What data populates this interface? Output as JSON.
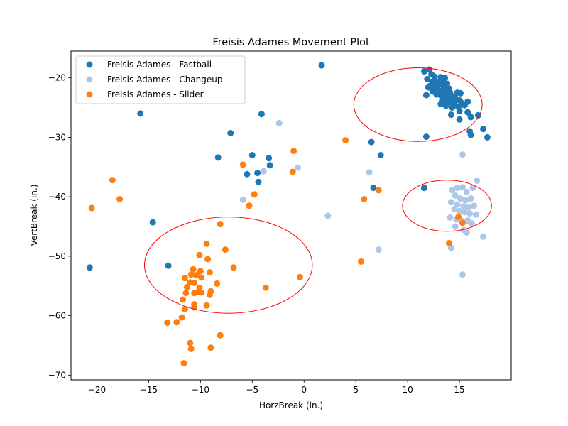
{
  "chart_data": {
    "type": "scatter",
    "title": "Freisis Adames Movement Plot",
    "xlabel": "HorzBreak (in.)",
    "ylabel": "VertBreak (in.)",
    "xlim": [
      -22.5,
      20
    ],
    "ylim": [
      -70.8,
      -15.5
    ],
    "xticks": [
      -20,
      -15,
      -10,
      -5,
      0,
      5,
      10,
      15
    ],
    "yticks": [
      -70,
      -60,
      -50,
      -40,
      -30,
      -20
    ],
    "legend_position": "top-left",
    "grid": false,
    "series": [
      {
        "name": "Freisis Adames - Fastball",
        "color": "#1f77b4",
        "points": [
          [
            1.7,
            -17.9
          ],
          [
            12.1,
            -18.6
          ],
          [
            11.6,
            -18.9
          ],
          [
            12.3,
            -19.4
          ],
          [
            12.6,
            -19.8
          ],
          [
            13.2,
            -19.9
          ],
          [
            13.6,
            -20.0
          ],
          [
            11.9,
            -20.2
          ],
          [
            12.4,
            -20.6
          ],
          [
            12.9,
            -20.7
          ],
          [
            13.4,
            -20.8
          ],
          [
            13.8,
            -21.0
          ],
          [
            12.2,
            -21.3
          ],
          [
            12.7,
            -21.5
          ],
          [
            13.0,
            -21.2
          ],
          [
            13.5,
            -21.6
          ],
          [
            14.0,
            -21.8
          ],
          [
            12.5,
            -22.0
          ],
          [
            13.1,
            -22.2
          ],
          [
            13.6,
            -22.4
          ],
          [
            14.1,
            -22.5
          ],
          [
            12.8,
            -22.8
          ],
          [
            13.3,
            -23.0
          ],
          [
            13.9,
            -23.2
          ],
          [
            14.4,
            -23.2
          ],
          [
            12.4,
            -22.3
          ],
          [
            13.7,
            -23.5
          ],
          [
            14.2,
            -23.7
          ],
          [
            14.8,
            -22.5
          ],
          [
            15.1,
            -22.6
          ],
          [
            14.6,
            -23.4
          ],
          [
            15.0,
            -23.8
          ],
          [
            13.4,
            -23.9
          ],
          [
            14.0,
            -24.1
          ],
          [
            14.5,
            -24.3
          ],
          [
            15.2,
            -24.2
          ],
          [
            13.7,
            -24.7
          ],
          [
            14.3,
            -25.0
          ],
          [
            14.9,
            -24.9
          ],
          [
            15.5,
            -24.6
          ],
          [
            15.8,
            -24.0
          ],
          [
            13.2,
            -24.4
          ],
          [
            12.0,
            -21.6
          ],
          [
            11.8,
            -22.9
          ],
          [
            15.0,
            -25.6
          ],
          [
            15.8,
            -25.8
          ],
          [
            14.2,
            -26.2
          ],
          [
            16.1,
            -26.6
          ],
          [
            16.8,
            -26.3
          ],
          [
            15.0,
            -27.0
          ],
          [
            16.0,
            -29.0
          ],
          [
            16.1,
            -29.6
          ],
          [
            17.3,
            -28.6
          ],
          [
            17.7,
            -30.0
          ],
          [
            11.8,
            -29.9
          ],
          [
            -15.8,
            -26.0
          ],
          [
            -4.1,
            -26.1
          ],
          [
            -7.1,
            -29.3
          ],
          [
            -8.3,
            -33.4
          ],
          [
            -5.0,
            -33.0
          ],
          [
            -3.4,
            -33.5
          ],
          [
            -3.3,
            -34.7
          ],
          [
            -5.5,
            -36.2
          ],
          [
            -4.5,
            -36.0
          ],
          [
            -4.4,
            -37.5
          ],
          [
            6.5,
            -30.8
          ],
          [
            7.4,
            -33.0
          ],
          [
            6.7,
            -38.5
          ],
          [
            11.6,
            -38.5
          ],
          [
            -14.6,
            -44.3
          ],
          [
            -13.1,
            -51.6
          ],
          [
            -20.7,
            -51.9
          ]
        ]
      },
      {
        "name": "Freisis Adames - Changeup",
        "color": "#aec7e8",
        "points": [
          [
            -2.4,
            -27.6
          ],
          [
            -3.9,
            -35.7
          ],
          [
            -0.6,
            -35.1
          ],
          [
            -5.9,
            -40.5
          ],
          [
            2.3,
            -43.2
          ],
          [
            6.3,
            -35.9
          ],
          [
            7.2,
            -48.9
          ],
          [
            15.3,
            -32.9
          ],
          [
            16.7,
            -37.3
          ],
          [
            16.3,
            -38.5
          ],
          [
            14.3,
            -38.9
          ],
          [
            14.8,
            -38.5
          ],
          [
            15.3,
            -38.4
          ],
          [
            15.7,
            -39.2
          ],
          [
            14.6,
            -39.8
          ],
          [
            15.1,
            -40.3
          ],
          [
            15.6,
            -40.6
          ],
          [
            16.1,
            -40.3
          ],
          [
            14.2,
            -40.9
          ],
          [
            14.8,
            -41.3
          ],
          [
            15.4,
            -41.6
          ],
          [
            15.9,
            -41.8
          ],
          [
            16.4,
            -41.5
          ],
          [
            14.5,
            -42.1
          ],
          [
            15.0,
            -42.4
          ],
          [
            15.5,
            -42.6
          ],
          [
            16.0,
            -42.8
          ],
          [
            16.6,
            -43.0
          ],
          [
            14.1,
            -43.5
          ],
          [
            14.7,
            -43.8
          ],
          [
            15.3,
            -44.1
          ],
          [
            15.8,
            -44.0
          ],
          [
            16.2,
            -44.5
          ],
          [
            14.6,
            -45.0
          ],
          [
            15.4,
            -45.6
          ],
          [
            15.7,
            -46.0
          ],
          [
            17.3,
            -46.7
          ],
          [
            14.2,
            -48.6
          ],
          [
            15.3,
            -53.1
          ]
        ]
      },
      {
        "name": "Freisis Adames - Slider",
        "color": "#ff7f0e",
        "points": [
          [
            -20.5,
            -41.9
          ],
          [
            -18.5,
            -37.2
          ],
          [
            -17.8,
            -40.4
          ],
          [
            -5.9,
            -34.6
          ],
          [
            -4.8,
            -39.6
          ],
          [
            -5.3,
            -41.5
          ],
          [
            -1.0,
            -32.3
          ],
          [
            -1.1,
            -35.8
          ],
          [
            4.0,
            -30.5
          ],
          [
            5.8,
            -40.4
          ],
          [
            7.2,
            -38.9
          ],
          [
            5.5,
            -50.9
          ],
          [
            14.0,
            -47.8
          ],
          [
            14.9,
            -43.4
          ],
          [
            15.3,
            -44.4
          ],
          [
            -8.1,
            -44.6
          ],
          [
            -7.6,
            -48.9
          ],
          [
            -9.4,
            -47.9
          ],
          [
            -9.3,
            -50.5
          ],
          [
            -10.1,
            -49.8
          ],
          [
            -6.8,
            -51.9
          ],
          [
            -10.7,
            -52.2
          ],
          [
            -10.0,
            -52.5
          ],
          [
            -9.1,
            -52.7
          ],
          [
            -10.9,
            -53.1
          ],
          [
            -10.4,
            -53.2
          ],
          [
            -9.9,
            -53.6
          ],
          [
            -11.5,
            -53.7
          ],
          [
            -11.0,
            -54.4
          ],
          [
            -10.6,
            -54.5
          ],
          [
            -8.4,
            -54.6
          ],
          [
            -11.3,
            -55.2
          ],
          [
            -10.1,
            -55.3
          ],
          [
            -3.7,
            -55.3
          ],
          [
            -0.4,
            -53.5
          ],
          [
            -9.0,
            -55.9
          ],
          [
            -11.4,
            -56.2
          ],
          [
            -10.6,
            -56.2
          ],
          [
            -10.2,
            -56.0
          ],
          [
            -9.9,
            -56.1
          ],
          [
            -9.1,
            -56.5
          ],
          [
            -11.7,
            -57.3
          ],
          [
            -10.6,
            -58.1
          ],
          [
            -9.4,
            -58.3
          ],
          [
            -10.6,
            -58.6
          ],
          [
            -11.5,
            -58.9
          ],
          [
            -11.8,
            -60.3
          ],
          [
            -12.3,
            -61.1
          ],
          [
            -13.2,
            -61.2
          ],
          [
            -8.1,
            -63.3
          ],
          [
            -11.0,
            -64.6
          ],
          [
            -10.9,
            -65.6
          ],
          [
            -9.0,
            -65.4
          ],
          [
            -11.6,
            -68.0
          ]
        ]
      }
    ],
    "ellipses": [
      {
        "cx": 11.0,
        "cy": -24.5,
        "rx": 6.2,
        "ry": 6.2,
        "color": "#ff0000"
      },
      {
        "cx": 13.8,
        "cy": -41.5,
        "rx": 4.3,
        "ry": 4.3,
        "color": "#ff0000"
      },
      {
        "cx": -7.3,
        "cy": -51.5,
        "rx": 8.1,
        "ry": 8.1,
        "color": "#ff0000"
      }
    ]
  }
}
